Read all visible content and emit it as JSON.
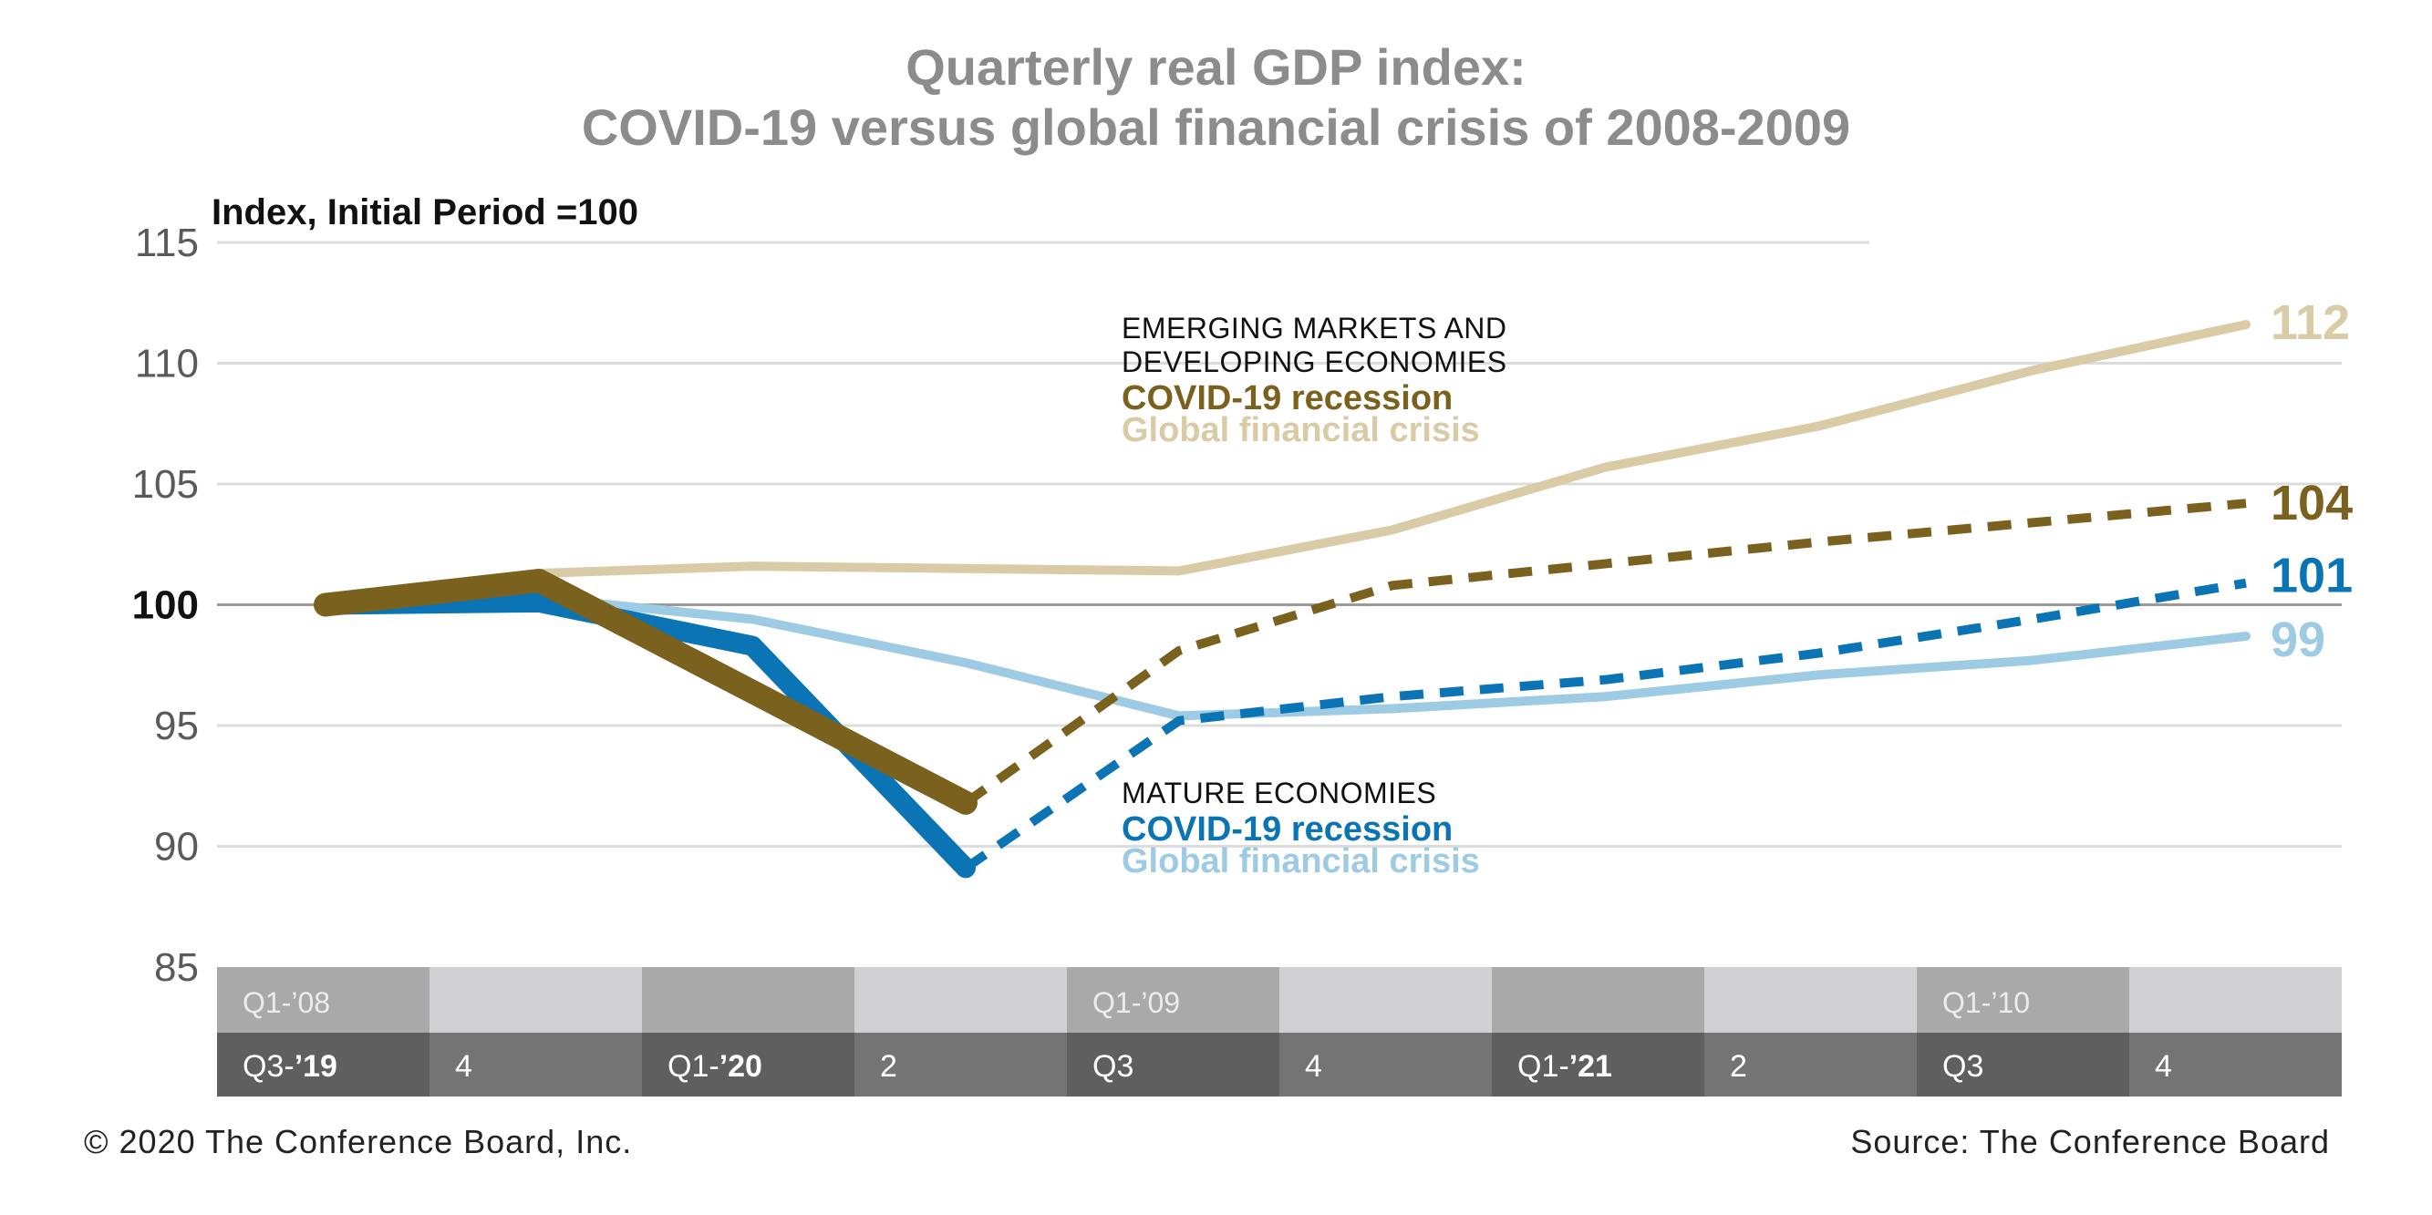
{
  "title_line1": "Quarterly real GDP index:",
  "title_line2": "COVID-19 versus global financial crisis of 2008-2009",
  "footer_left": "© 2020 The Conference Board, Inc.",
  "footer_right": "Source: The Conference Board",
  "emerging_annotation": {
    "line1": "EMERGING MARKETS AND",
    "line2": "DEVELOPING ECONOMIES",
    "covid": "COVID-19 recession",
    "gfc": "Global financial crisis"
  },
  "mature_annotation": {
    "line1": "MATURE ECONOMIES",
    "covid": "COVID-19 recession",
    "gfc": "Global financial crisis"
  },
  "colors": {
    "emerging_covid": "#7a611e",
    "emerging_gfc": "#d8cba6",
    "mature_covid": "#0a74b5",
    "mature_gfc": "#9ccbe3",
    "band_top_dark": "#a9a9a9",
    "band_top_light": "#d1d1d3",
    "band_bottom_dark": "#5f5f60",
    "band_bottom_light": "#747475"
  },
  "chart_data": {
    "type": "line",
    "ylabel": "Index, Initial Period =100",
    "ylim": [
      85,
      115
    ],
    "yticks": [
      85,
      90,
      95,
      100,
      105,
      110,
      115
    ],
    "x_index": [
      0,
      1,
      2,
      3,
      4,
      5,
      6,
      7,
      8,
      9
    ],
    "x_labels_gfc": [
      "Q1-’08",
      "",
      "",
      "",
      "Q1-’09",
      "",
      "",
      "",
      "Q1-’10",
      ""
    ],
    "x_labels_covid": [
      {
        "pre": "Q3-",
        "bold": "’19"
      },
      {
        "pre": "4",
        "bold": ""
      },
      {
        "pre": "Q1-",
        "bold": "’20"
      },
      {
        "pre": "2",
        "bold": ""
      },
      {
        "pre": "Q3",
        "bold": ""
      },
      {
        "pre": "4",
        "bold": ""
      },
      {
        "pre": "Q1-",
        "bold": "’21"
      },
      {
        "pre": "2",
        "bold": ""
      },
      {
        "pre": "Q3",
        "bold": ""
      },
      {
        "pre": "4",
        "bold": ""
      }
    ],
    "series": [
      {
        "name": "Emerging markets – Global financial crisis",
        "style": "solid",
        "colorKey": "emerging_gfc",
        "width": 10,
        "x": [
          0,
          1,
          2,
          3,
          4,
          5,
          6,
          7,
          8,
          9
        ],
        "values": [
          100,
          101.3,
          101.6,
          101.5,
          101.4,
          103.1,
          105.7,
          107.4,
          109.7,
          111.6
        ],
        "end_label": "112"
      },
      {
        "name": "Mature economies – Global financial crisis",
        "style": "solid",
        "colorKey": "mature_gfc",
        "width": 10,
        "x": [
          0,
          1,
          2,
          3,
          4,
          5,
          6,
          7,
          8,
          9
        ],
        "values": [
          100,
          100.3,
          99.4,
          97.6,
          95.4,
          95.7,
          96.2,
          97.1,
          97.7,
          98.7
        ],
        "end_label": "99"
      },
      {
        "name": "Mature economies – COVID-19 recession",
        "style": "solid",
        "colorKey": "mature_covid",
        "width": 22,
        "x": [
          0,
          1,
          2,
          3
        ],
        "values": [
          100,
          100.1,
          98.3,
          89.1
        ]
      },
      {
        "name": "Mature economies – COVID-19 recession (forecast)",
        "style": "dashed",
        "colorKey": "mature_covid",
        "width": 10,
        "x": [
          3,
          4,
          5,
          6,
          7,
          8,
          9
        ],
        "values": [
          89.1,
          95.2,
          96.2,
          96.9,
          98,
          99.4,
          100.9
        ],
        "end_label": "101"
      },
      {
        "name": "Emerging markets – COVID-19 recession",
        "style": "solid",
        "colorKey": "emerging_covid",
        "width": 26,
        "x": [
          0,
          1,
          2,
          3
        ],
        "values": [
          100,
          101,
          96.4,
          91.8
        ]
      },
      {
        "name": "Emerging markets – COVID-19 recession (forecast)",
        "style": "dashed",
        "colorKey": "emerging_covid",
        "width": 10,
        "x": [
          3,
          4,
          5,
          6,
          7,
          8,
          9
        ],
        "values": [
          91.8,
          98.1,
          100.8,
          101.7,
          102.6,
          103.4,
          104.2
        ],
        "end_label": "104"
      }
    ]
  }
}
